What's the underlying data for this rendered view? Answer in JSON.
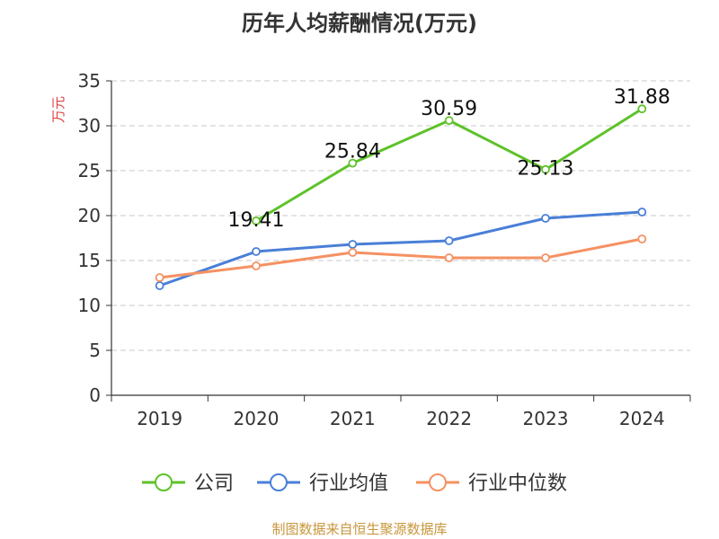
{
  "chart_data": {
    "type": "line",
    "title": "历年人均薪酬情况(万元)",
    "ylabel": "万元",
    "xlabel": "",
    "categories": [
      "2019",
      "2020",
      "2021",
      "2022",
      "2023",
      "2024"
    ],
    "ylim": [
      0,
      35
    ],
    "yticks": [
      0,
      5,
      10,
      15,
      20,
      25,
      30,
      35
    ],
    "grid": true,
    "legend_position": "bottom",
    "series": [
      {
        "name": "公司",
        "color": "#5ec22a",
        "values": [
          null,
          19.41,
          25.84,
          30.59,
          25.13,
          31.88
        ],
        "labels": [
          null,
          "19.41",
          "25.84",
          "30.59",
          "25.13",
          "31.88"
        ]
      },
      {
        "name": "行业均值",
        "color": "#4a7fd8",
        "values": [
          12.2,
          16.0,
          16.8,
          17.2,
          19.7,
          20.4
        ]
      },
      {
        "name": "行业中位数",
        "color": "#f59162",
        "values": [
          13.1,
          14.4,
          15.9,
          15.3,
          15.3,
          17.4
        ]
      }
    ]
  },
  "footer": {
    "source": "制图数据来自恒生聚源数据库"
  }
}
